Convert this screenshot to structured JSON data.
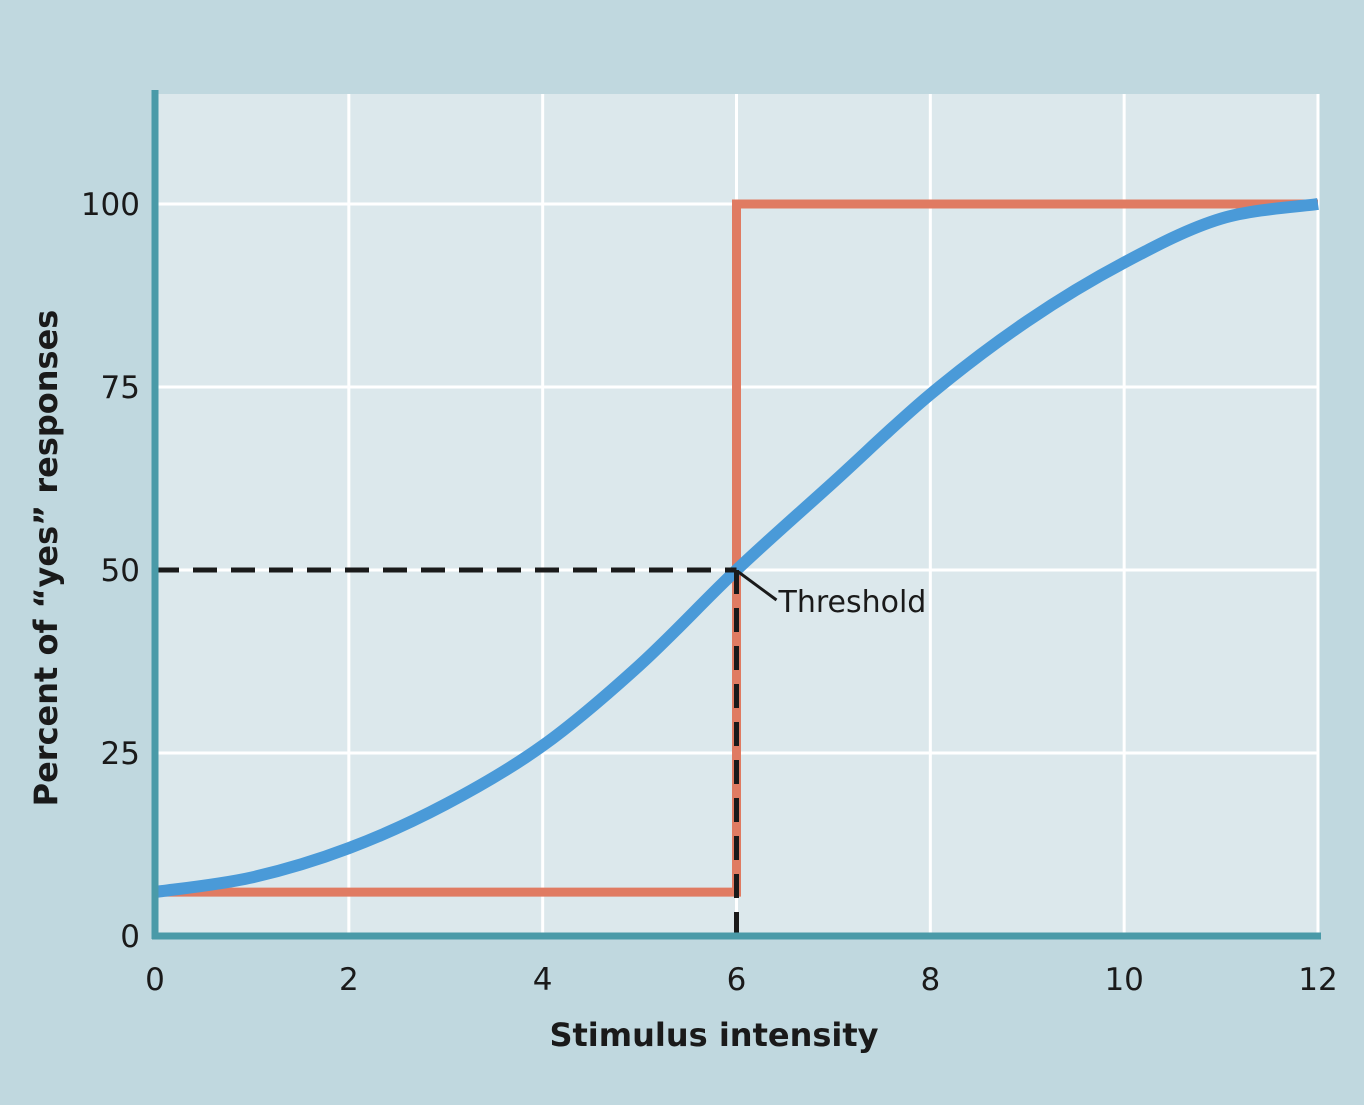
{
  "chart_data": {
    "type": "line",
    "title": "",
    "xlabel": "Stimulus intensity",
    "ylabel": "Percent of “yes” responses",
    "xlim": [
      0,
      12
    ],
    "ylim": [
      0,
      100
    ],
    "x_ticks": [
      0,
      2,
      4,
      6,
      8,
      10,
      12
    ],
    "y_ticks": [
      0,
      25,
      50,
      75,
      100
    ],
    "x_tick_labels": [
      "0",
      "2",
      "4",
      "6",
      "8",
      "10",
      "12"
    ],
    "y_tick_labels": [
      "0",
      "25",
      "50",
      "75",
      "100"
    ],
    "grid": true,
    "legend": "none",
    "series": [
      {
        "color": "#e07b62",
        "style": "step",
        "x": [
          0,
          6,
          6,
          12
        ],
        "y": [
          6,
          6,
          100,
          100
        ]
      },
      {
        "color": "#4a9ad8",
        "style": "smooth",
        "x": [
          0,
          1,
          2,
          3,
          4,
          5,
          6,
          7,
          8,
          9,
          10,
          11,
          12
        ],
        "y": [
          6,
          8,
          12,
          18,
          26,
          37,
          50,
          62,
          74,
          84,
          92,
          98,
          100
        ]
      }
    ],
    "threshold": {
      "x": 6,
      "y": 50
    },
    "annotations": [
      {
        "text": "Threshold",
        "x": 6,
        "y": 50
      }
    ],
    "colors": {
      "background": "#c0d8df",
      "plot_area": "#dce8ec",
      "axis": "#4a9aa8",
      "grid": "#ffffff",
      "guide": "#1a1a1a"
    }
  }
}
